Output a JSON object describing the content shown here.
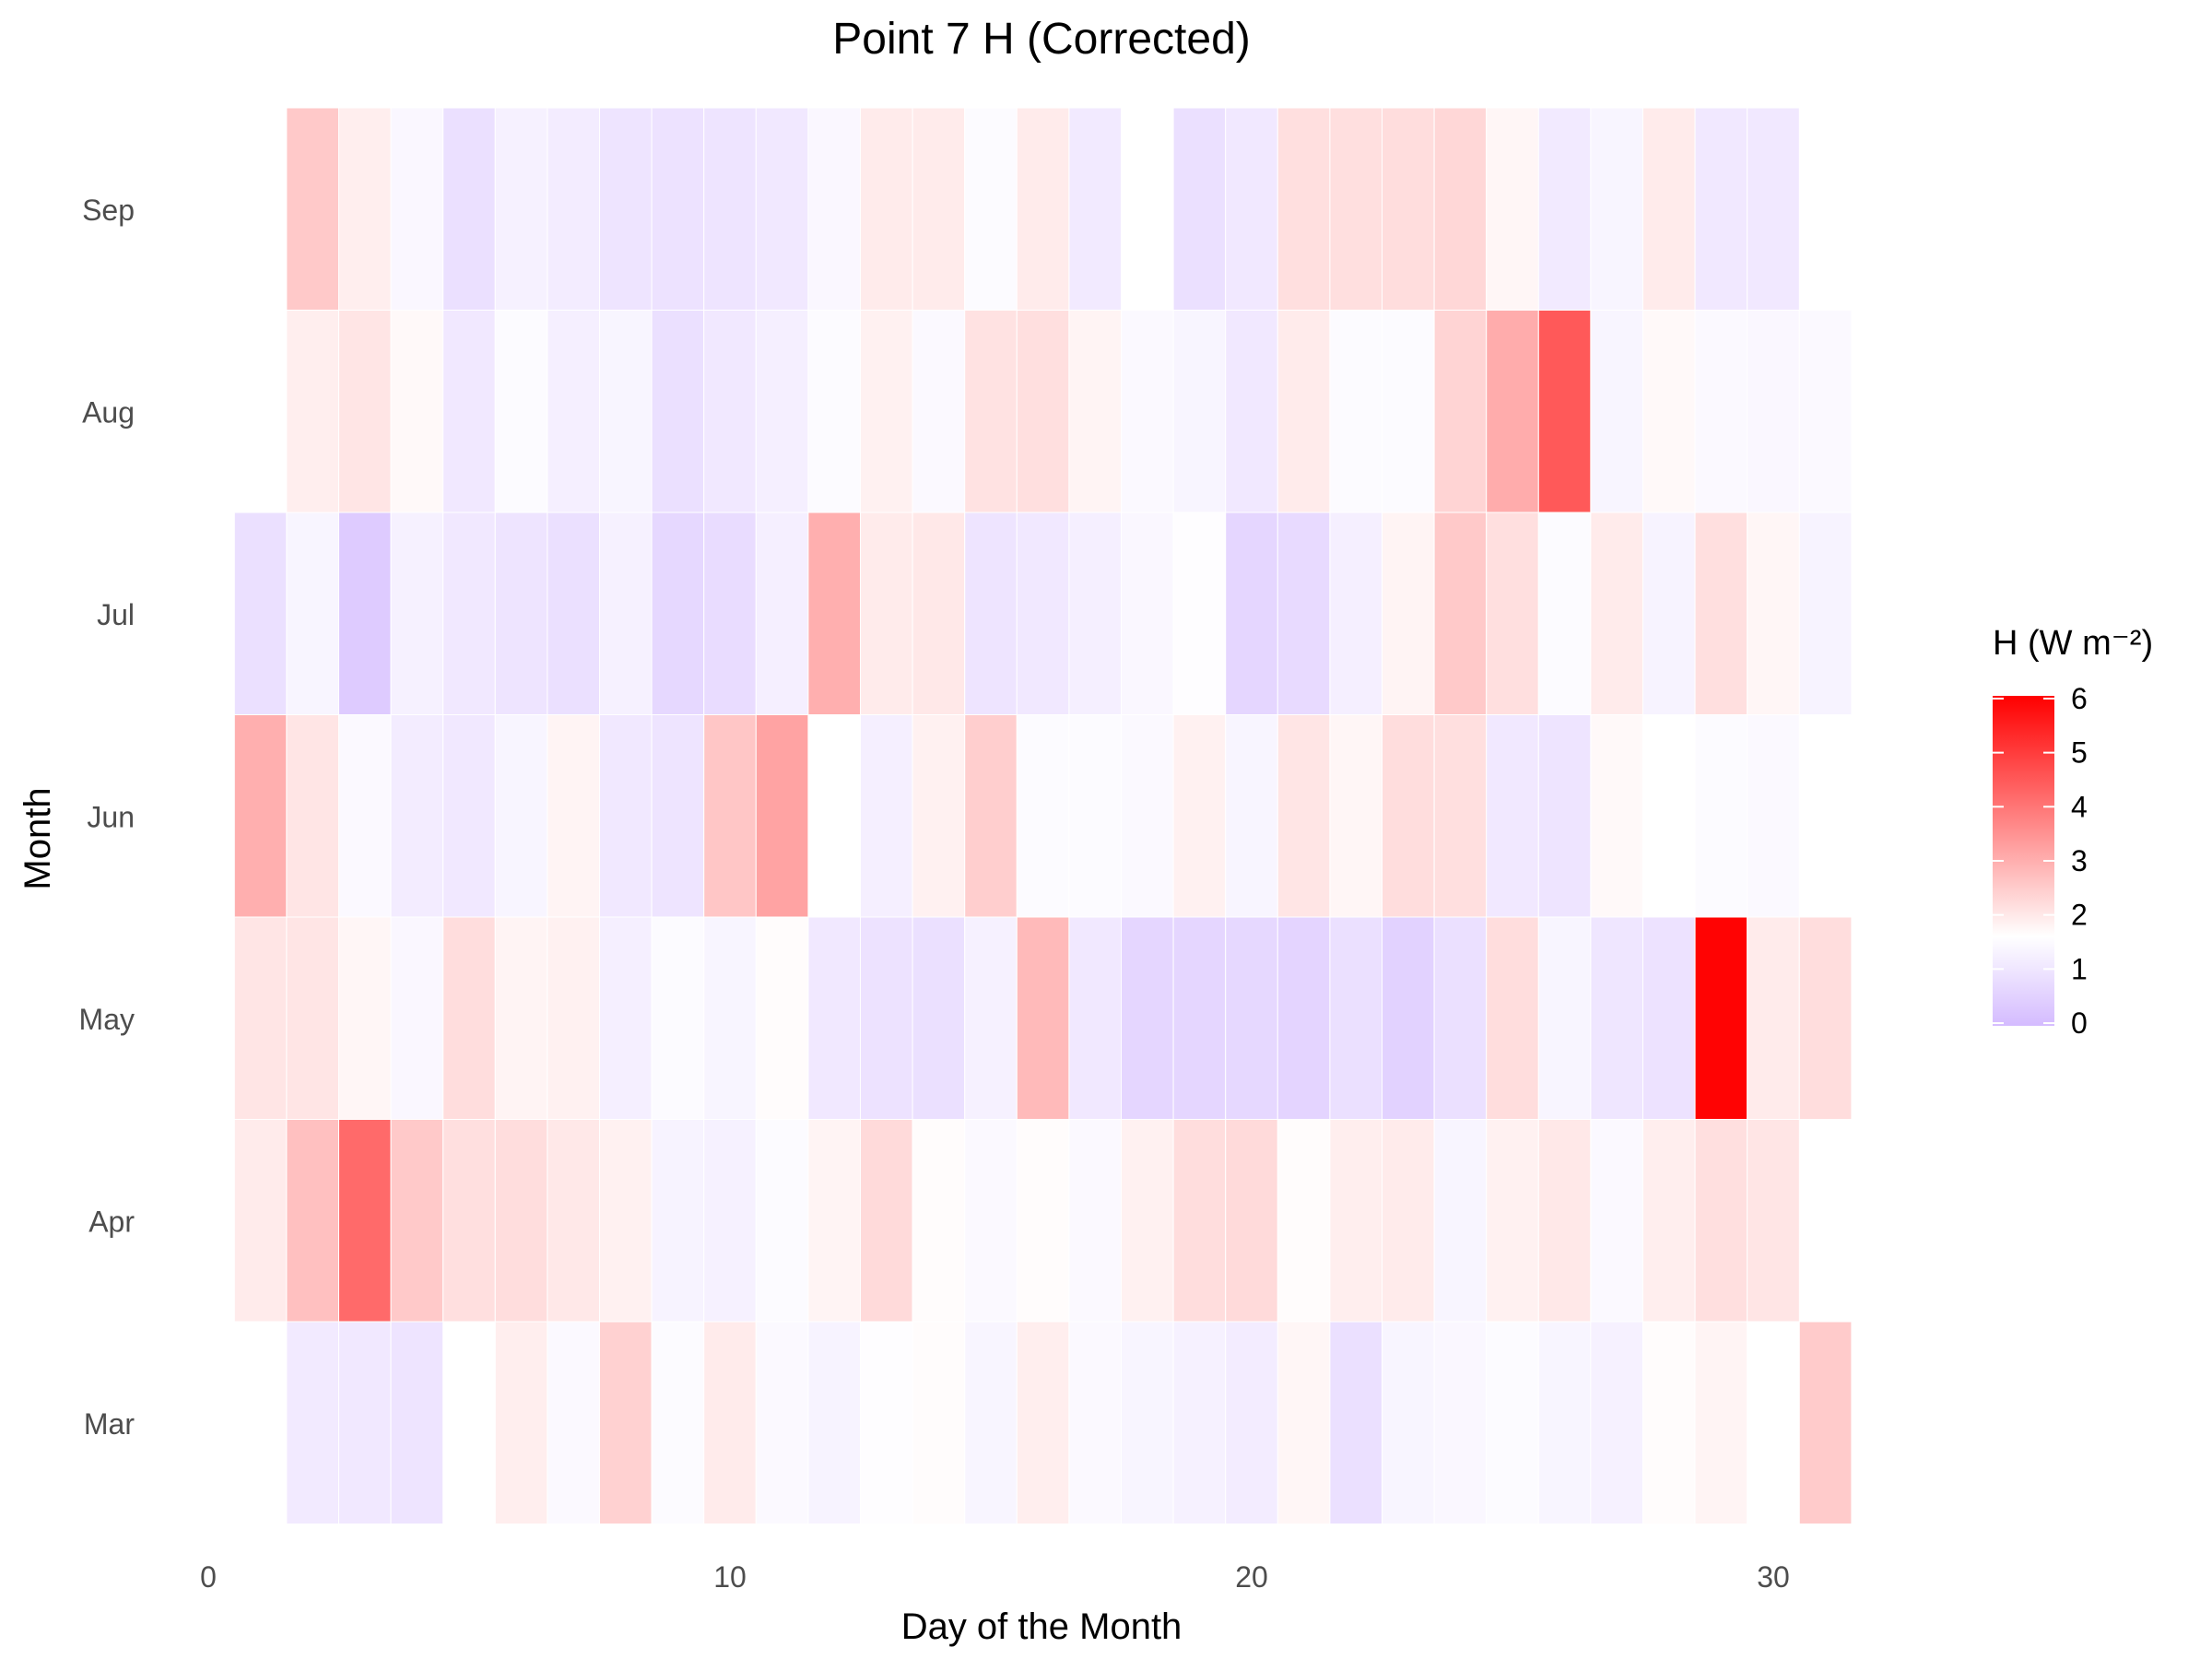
{
  "chart_data": {
    "type": "heatmap",
    "title": "Point 7 H (Corrected)",
    "xlabel": "Day of the Month",
    "ylabel": "Month",
    "xlim": [
      0,
      31.5
    ],
    "x_ticks": [
      0,
      10,
      20,
      30
    ],
    "months": [
      "Mar",
      "Apr",
      "May",
      "Jun",
      "Jul",
      "Aug",
      "Sep"
    ],
    "legend": {
      "title": "H (W m⁻²)",
      "ticks": [
        0,
        1,
        2,
        3,
        4,
        5,
        6
      ],
      "range": [
        -0.05,
        6.05
      ],
      "colors": {
        "low": "#D4BBFF",
        "mid": "#FFFFFF",
        "high": "#FF0000"
      },
      "midpoint": 1.6,
      "position": "right"
    },
    "grid": false,
    "rows": {
      "Mar": [
        null,
        1.1,
        1.05,
        0.95,
        null,
        1.9,
        1.45,
        2.4,
        1.5,
        1.95,
        1.45,
        1.3,
        1.55,
        1.65,
        1.35,
        1.9,
        1.45,
        1.35,
        1.25,
        1.15,
        1.75,
        0.85,
        1.35,
        1.4,
        1.5,
        1.35,
        1.25,
        1.65,
        1.8,
        1.6,
        2.5
      ],
      "Apr": [
        1.95,
        2.7,
        4.2,
        2.55,
        2.15,
        2.2,
        2.0,
        1.85,
        1.3,
        1.25,
        1.5,
        1.8,
        2.25,
        1.65,
        1.45,
        1.65,
        1.45,
        1.85,
        2.2,
        2.25,
        1.65,
        1.9,
        1.95,
        1.35,
        1.85,
        2.0,
        1.45,
        1.9,
        2.15,
        2.05,
        null
      ],
      "May": [
        2.05,
        2.05,
        1.75,
        1.4,
        2.2,
        1.8,
        1.85,
        1.2,
        1.5,
        1.35,
        1.65,
        1.05,
        0.9,
        0.85,
        1.25,
        2.8,
        1.05,
        0.6,
        0.6,
        0.65,
        0.55,
        0.85,
        0.5,
        0.85,
        2.2,
        1.35,
        1.0,
        0.9,
        6.0,
        1.95,
        2.2
      ],
      "Jun": [
        3.0,
        2.05,
        1.45,
        1.15,
        1.05,
        1.35,
        1.8,
        1.05,
        0.95,
        2.6,
        3.2,
        null,
        1.2,
        1.85,
        2.45,
        1.5,
        1.5,
        1.45,
        1.85,
        1.35,
        2.05,
        1.75,
        2.2,
        2.15,
        1.05,
        0.95,
        1.7,
        1.6,
        1.5,
        1.45,
        null
      ],
      "Jul": [
        0.85,
        1.35,
        0.35,
        1.25,
        1.05,
        0.95,
        0.85,
        1.25,
        0.65,
        0.75,
        1.2,
        3.0,
        1.95,
        2.0,
        0.95,
        1.05,
        1.2,
        1.4,
        1.55,
        0.6,
        0.7,
        1.2,
        1.8,
        2.55,
        2.15,
        1.5,
        1.95,
        1.3,
        2.15,
        1.75,
        1.3
      ],
      "Aug": [
        1.6,
        1.9,
        2.05,
        1.7,
        1.05,
        1.5,
        1.2,
        1.35,
        0.85,
        1.05,
        1.2,
        1.5,
        1.85,
        1.45,
        2.1,
        2.15,
        1.8,
        1.45,
        1.35,
        1.05,
        1.95,
        1.5,
        1.5,
        2.35,
        3.05,
        4.5,
        1.35,
        1.7,
        1.45,
        1.4,
        1.45
      ],
      "Sep": [
        null,
        2.55,
        1.9,
        1.4,
        0.85,
        1.25,
        1.15,
        0.95,
        0.9,
        0.95,
        1.05,
        1.4,
        1.95,
        1.95,
        1.5,
        1.95,
        1.1,
        null,
        0.85,
        1.05,
        2.15,
        2.15,
        2.2,
        2.3,
        1.75,
        1.1,
        1.35,
        1.95,
        1.05,
        1.05,
        null
      ]
    }
  }
}
